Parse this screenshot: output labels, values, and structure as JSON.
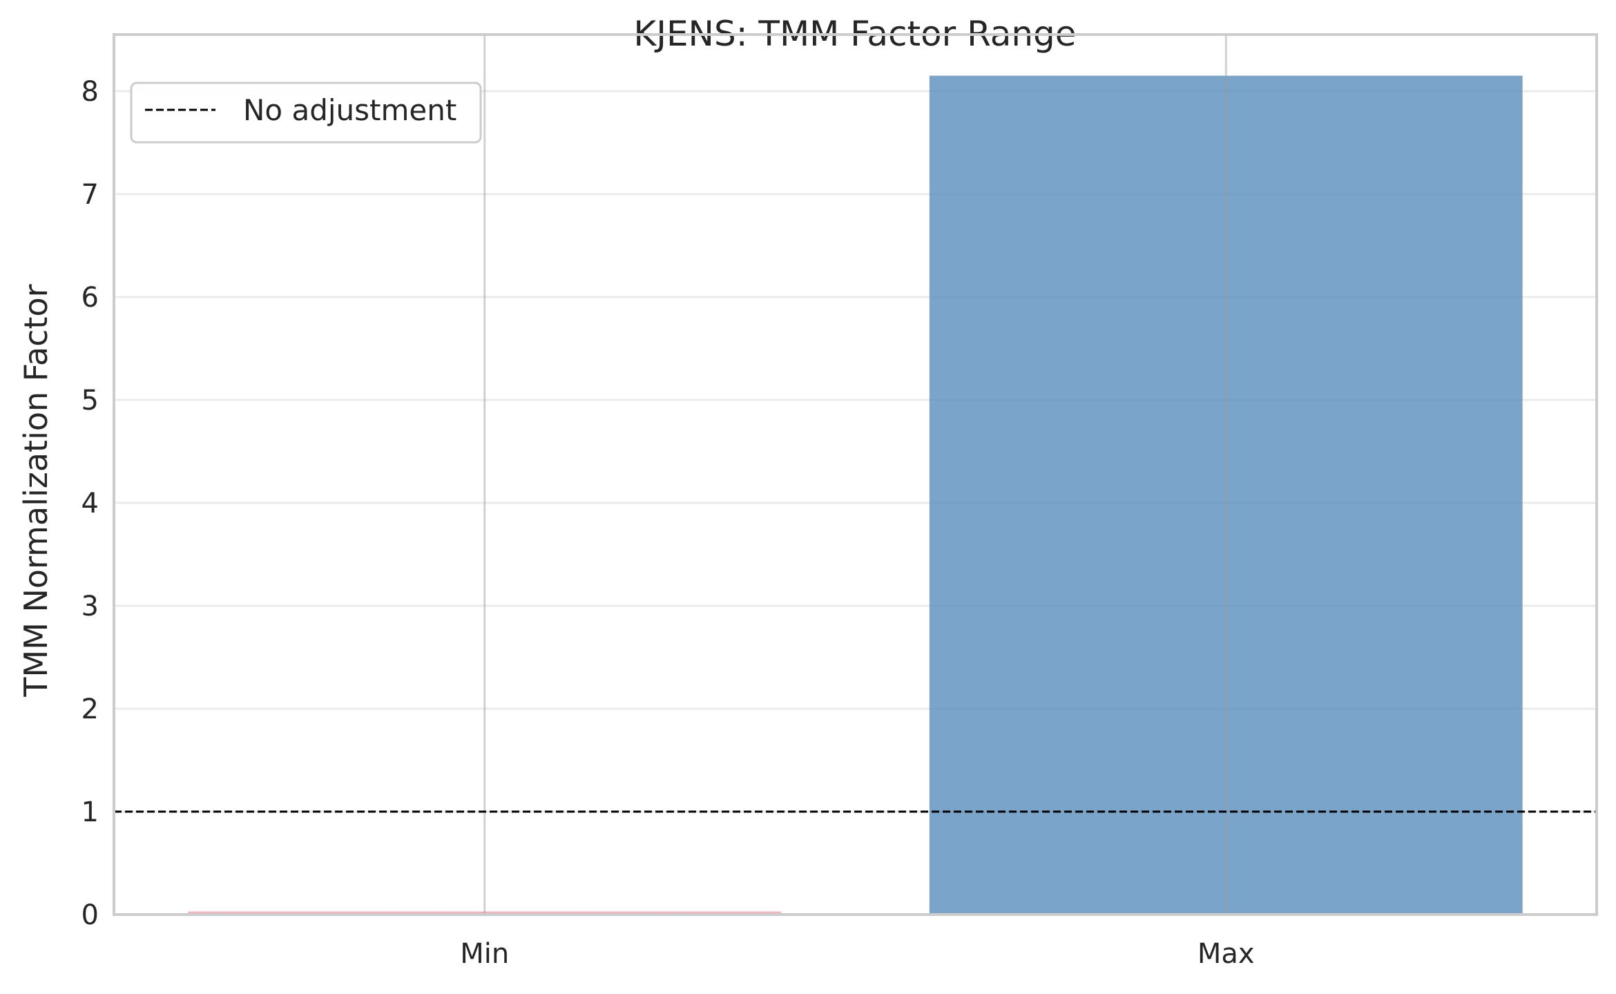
{
  "chart_data": {
    "type": "bar",
    "title": "KJENS: TMM Factor Range",
    "xlabel": "",
    "ylabel": "TMM Normalization Factor",
    "categories": [
      "Min",
      "Max"
    ],
    "values": [
      0.03,
      8.15
    ],
    "bar_colors": [
      "#f4a6b4",
      "#4f86b8"
    ],
    "ylim": [
      0,
      8.55
    ],
    "yticks": [
      0,
      1,
      2,
      3,
      4,
      5,
      6,
      7,
      8
    ],
    "reference_line": {
      "y": 1,
      "label": "No adjustment",
      "color": "#000000",
      "style": "dashed"
    },
    "grid": true,
    "legend": {
      "position": "top-left",
      "entries": [
        "No adjustment"
      ]
    }
  }
}
